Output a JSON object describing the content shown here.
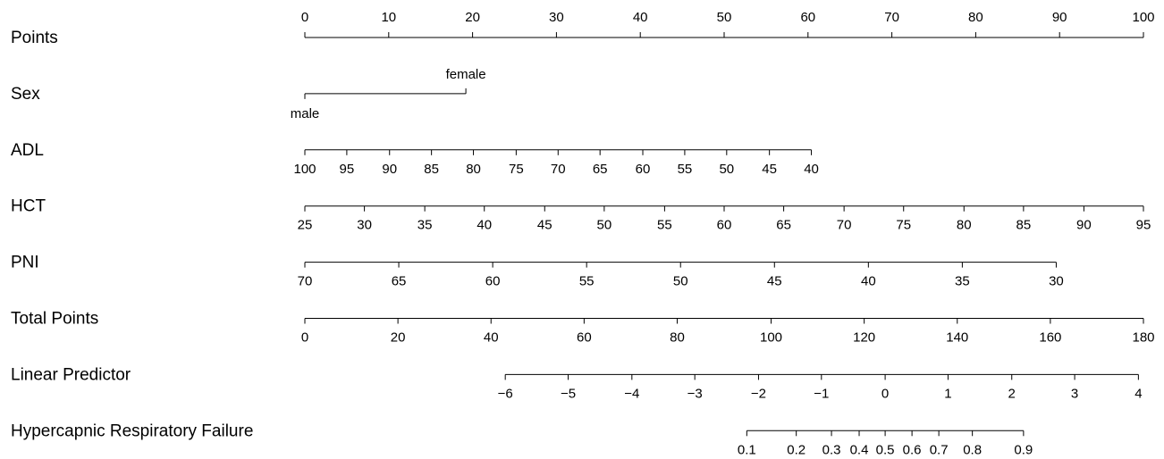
{
  "chart_data": {
    "type": "nomogram",
    "xlim": [
      0,
      100
    ],
    "rows": [
      {
        "label": "Points",
        "ticks": [
          0,
          10,
          20,
          30,
          40,
          50,
          60,
          70,
          80,
          90,
          100
        ],
        "labels_above": true
      },
      {
        "label": "Sex",
        "ticks": [
          "male",
          "female"
        ],
        "points": [
          0,
          19.2
        ],
        "labels_above": [
          false,
          true
        ]
      },
      {
        "label": "ADL",
        "ticks": [
          100,
          95,
          90,
          85,
          80,
          75,
          70,
          65,
          60,
          55,
          50,
          45,
          40
        ],
        "points": [
          0,
          5,
          10.1,
          15.1,
          20.1,
          25.2,
          30.2,
          35.2,
          40.3,
          45.3,
          50.3,
          55.4,
          60.4
        ],
        "labels_above": false
      },
      {
        "label": "HCT",
        "ticks": [
          25,
          30,
          35,
          40,
          45,
          50,
          55,
          60,
          65,
          70,
          75,
          80,
          85,
          90,
          95
        ],
        "points": [
          0,
          7.1,
          14.3,
          21.4,
          28.6,
          35.7,
          42.9,
          50,
          57.1,
          64.3,
          71.4,
          78.6,
          85.7,
          92.9,
          100
        ],
        "labels_above": false
      },
      {
        "label": "PNI",
        "ticks": [
          70,
          65,
          60,
          55,
          50,
          45,
          40,
          35,
          30
        ],
        "points": [
          0,
          11.2,
          22.4,
          33.6,
          44.8,
          56,
          67.2,
          78.4,
          89.6
        ],
        "labels_above": false
      },
      {
        "label": "Total Points",
        "ticks": [
          0,
          20,
          40,
          60,
          80,
          100,
          120,
          140,
          160,
          180
        ],
        "points": [
          0,
          11.1,
          22.2,
          33.3,
          44.4,
          55.6,
          66.7,
          77.8,
          88.9,
          100
        ],
        "labels_above": false
      },
      {
        "label": "Linear Predictor",
        "ticks": [
          {
            "value": -6,
            "label": "−6"
          },
          {
            "value": -5,
            "label": "−5"
          },
          {
            "value": -4,
            "label": "−4"
          },
          {
            "value": -3,
            "label": "−3"
          },
          {
            "value": -2,
            "label": "−2"
          },
          {
            "value": -1,
            "label": "−1"
          },
          0,
          1,
          2,
          3,
          4
        ],
        "points": [
          23.9,
          31.4,
          39,
          46.5,
          54.1,
          61.6,
          69.2,
          76.7,
          84.3,
          91.8,
          99.4
        ],
        "labels_above": false
      },
      {
        "label": "Hypercapnic Respiratory Failure",
        "ticks": [
          0.1,
          0.2,
          0.3,
          0.4,
          0.5,
          0.6,
          0.7,
          0.8,
          0.9
        ],
        "points": [
          52.7,
          58.6,
          62.8,
          66.1,
          69.2,
          72.4,
          75.6,
          79.6,
          85.7
        ],
        "labels_above": false
      }
    ]
  }
}
